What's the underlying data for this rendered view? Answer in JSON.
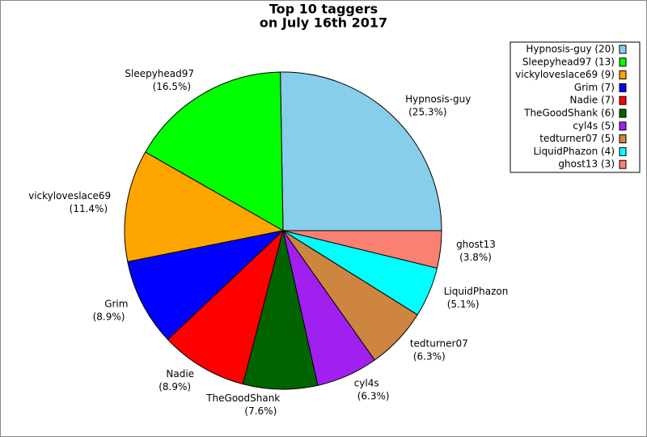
{
  "chart_data": {
    "type": "pie",
    "title": [
      "Top 10 taggers",
      "on July 16th 2017"
    ],
    "categories": [
      "Hypnosis-guy",
      "Sleepyhead97",
      "vickyloveslace69",
      "Grim",
      "Nadie",
      "TheGoodShank",
      "cyl4s",
      "tedturner07",
      "LiquidPhazon",
      "ghost13"
    ],
    "values": [
      25.3,
      16.5,
      11.4,
      8.9,
      8.9,
      7.6,
      6.3,
      6.3,
      5.1,
      3.8
    ],
    "value_labels": [
      "(25.3%)",
      "(16.5%)",
      "(11.4%)",
      "(8.9%)",
      "(8.9%)",
      "(7.6%)",
      "(6.3%)",
      "(6.3%)",
      "(5.1%)",
      "(3.8%)"
    ],
    "colors": [
      "#87ceeb",
      "#00ff00",
      "#ffa500",
      "#0000ff",
      "#ff0000",
      "#006400",
      "#a020f0",
      "#cd853f",
      "#00ffff",
      "#fa8072"
    ],
    "legend": [
      "Hypnosis-guy (20)",
      "Sleepyhead97 (13)",
      "vickyloveslace69 (9)",
      "Grim (7)",
      "Nadie (7)",
      "TheGoodShank (6)",
      "cyl4s (5)",
      "tedturner07 (5)",
      "LiquidPhazon (4)",
      "ghost13 (3)"
    ],
    "legend_position": "upper right"
  }
}
